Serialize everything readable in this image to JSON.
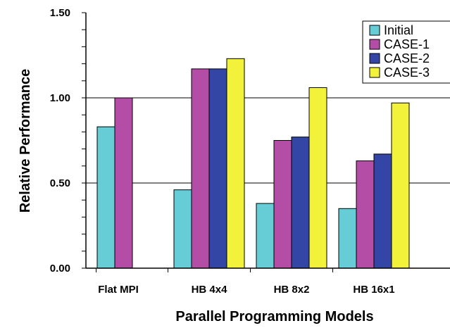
{
  "chart_data": {
    "type": "bar",
    "xlabel": "Parallel Programming Models",
    "ylabel": "Relative Performance",
    "ylim": [
      0,
      1.5
    ],
    "yticks": [
      "0.00",
      "0.50",
      "1.00",
      "1.50"
    ],
    "grid": "horizontal at 0.5 and 1.0",
    "legend_position": "top-right",
    "categories": [
      "Flat MPI",
      "HB 4x4",
      "HB 8x2",
      "HB 16x1"
    ],
    "series": [
      {
        "name": "Initial",
        "color": "#66CCD6",
        "values": [
          0.83,
          0.46,
          0.38,
          0.35
        ]
      },
      {
        "name": "CASE-1",
        "color": "#B34DA6",
        "values": [
          1.0,
          1.17,
          0.75,
          0.63
        ]
      },
      {
        "name": "CASE-2",
        "color": "#3346A6",
        "values": [
          null,
          1.17,
          0.77,
          0.67
        ]
      },
      {
        "name": "CASE-3",
        "color": "#F2F23A",
        "values": [
          null,
          1.23,
          1.06,
          0.97
        ]
      }
    ]
  }
}
